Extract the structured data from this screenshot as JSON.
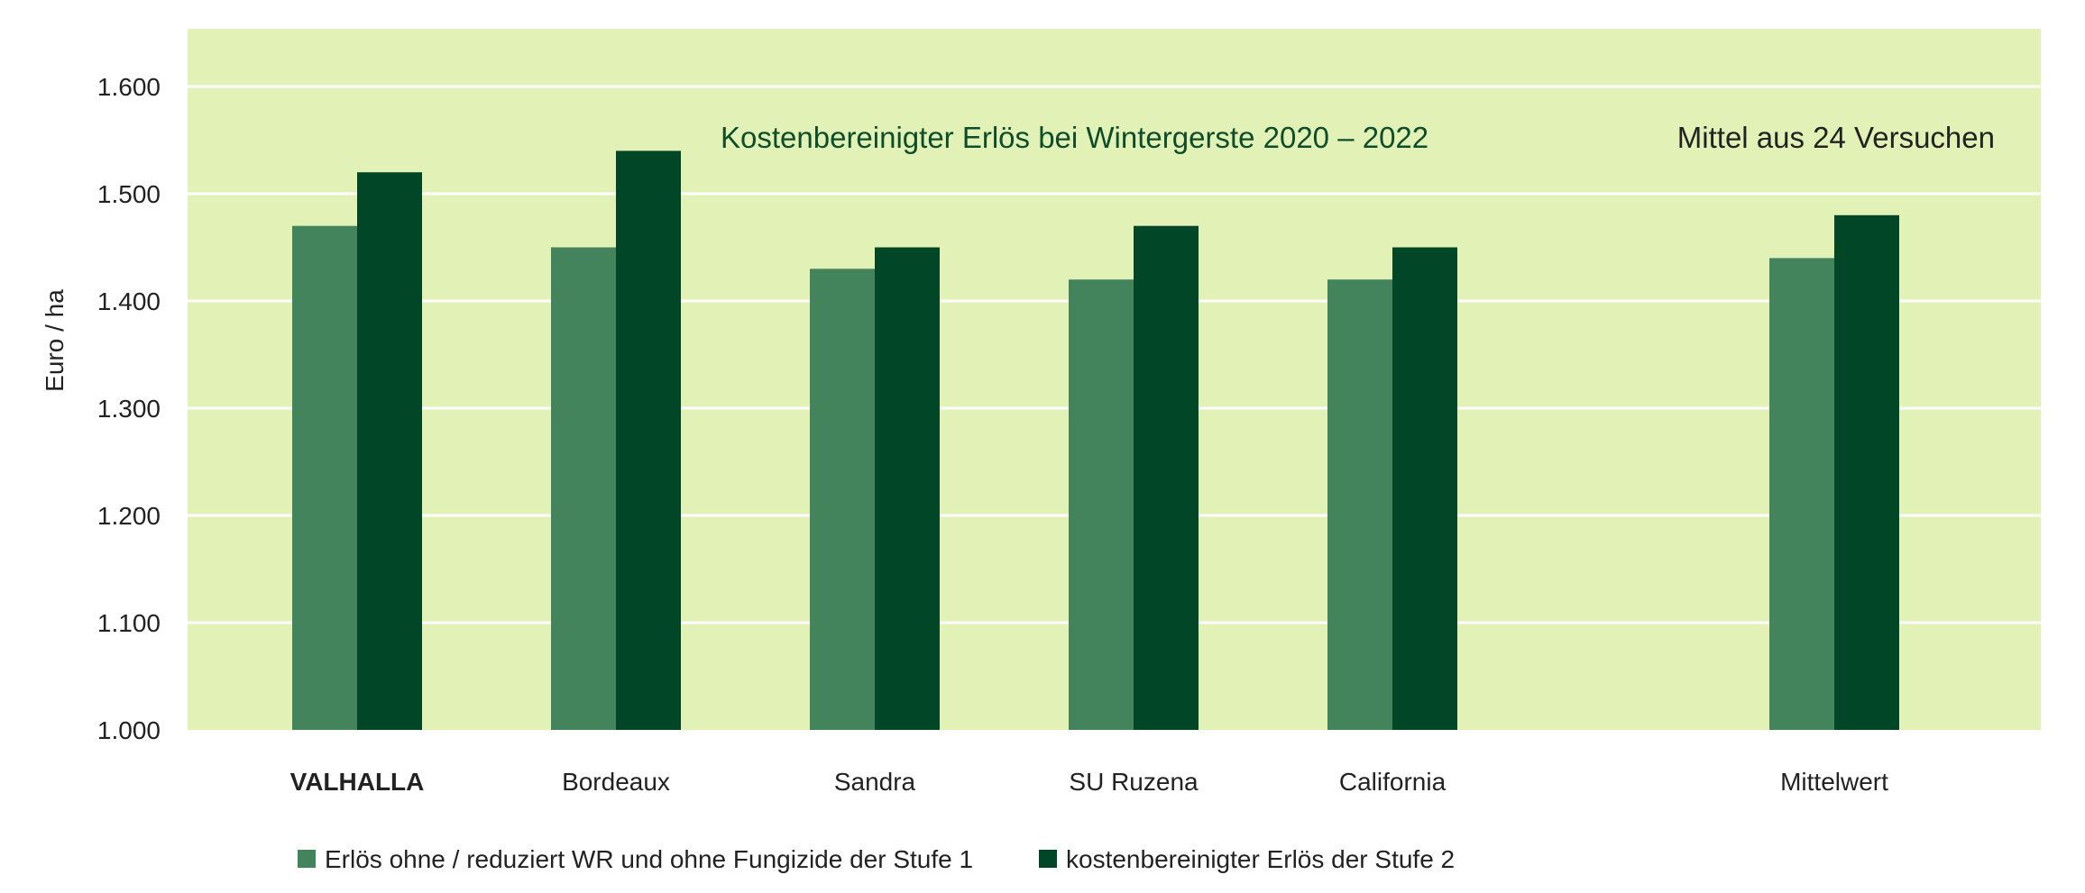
{
  "chart_data": {
    "type": "bar",
    "title": "Kostenbereinigter Erlös bei Wintergerste 2020 – 2022",
    "subtitle": "Mittel aus 24 Versuchen",
    "ylabel": "Euro / ha",
    "xlabel": "",
    "ylim": [
      1000,
      1650
    ],
    "yticks": [
      1000,
      1100,
      1200,
      1300,
      1400,
      1500,
      1600
    ],
    "ytick_labels": [
      "1.000",
      "1.100",
      "1.200",
      "1.300",
      "1.400",
      "1.500",
      "1.600"
    ],
    "categories": [
      "VALHALLA",
      "Bordeaux",
      "Sandra",
      "SU Ruzena",
      "California",
      "Mittelwert"
    ],
    "bold_categories": [
      "VALHALLA"
    ],
    "series": [
      {
        "name": "Erlös ohne / reduziert WR und ohne Fungizide der Stufe 1",
        "color": "#44845c",
        "values": [
          1470,
          1450,
          1430,
          1420,
          1420,
          1440
        ]
      },
      {
        "name": "kostenbereinigter Erlös der Stufe 2",
        "color": "#024628",
        "values": [
          1520,
          1540,
          1450,
          1470,
          1450,
          1480
        ]
      }
    ],
    "grid": true,
    "plot_background": "#e2f2b7",
    "gridline_color": "#ffffff",
    "title_color": "#0e4d2a",
    "legend_position": "bottom-left"
  }
}
